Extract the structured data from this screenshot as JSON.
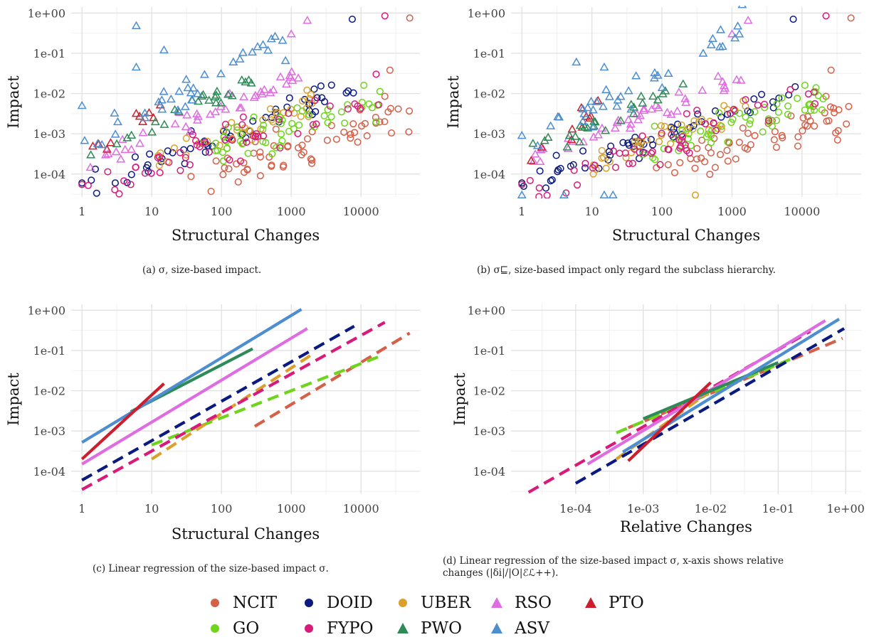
{
  "colors": {
    "NCIT": "#d4604a",
    "DOID": "#0b1a80",
    "UBER": "#d9a02b",
    "RSO": "#dd6de0",
    "PTO": "#cc1f2e",
    "GO": "#6fd41c",
    "FYPO": "#d81b7a",
    "PWO": "#2e8b57",
    "ASV": "#4d8ed0"
  },
  "legend": [
    {
      "name": "NCIT",
      "shape": "circle"
    },
    {
      "name": "DOID",
      "shape": "circle"
    },
    {
      "name": "UBER",
      "shape": "circle"
    },
    {
      "name": "RSO",
      "shape": "triangle"
    },
    {
      "name": "PTO",
      "shape": "triangle"
    },
    {
      "name": "GO",
      "shape": "circle"
    },
    {
      "name": "FYPO",
      "shape": "circle"
    },
    {
      "name": "PWO",
      "shape": "triangle"
    },
    {
      "name": "ASV",
      "shape": "triangle"
    }
  ],
  "captions": {
    "a": "(a) σ, size-based impact.",
    "b": "(b) σ⊑, size-based impact only regard the subclass hierarchy.",
    "c": "(c) Linear regression of the size-based impact σ.",
    "d1": "(d) Linear regression of the size-based impact σ, x-axis shows relative",
    "d2": "changes (|δi|/|O|ℰℒ++)."
  },
  "chart_data": [
    {
      "id": "a",
      "type": "scatter",
      "xlabel": "Structural Changes",
      "ylabel": "Impact",
      "xscale": "log",
      "yscale": "log",
      "xlim": [
        0.7,
        70000
      ],
      "ylim": [
        2.7e-05,
        1.4
      ],
      "xticks": [
        1,
        10,
        100,
        1000,
        10000
      ],
      "xticklabels": [
        "1",
        "10",
        "100",
        "1000",
        "10000"
      ],
      "yticks": [
        0.0001,
        0.001,
        0.01,
        0.1,
        1
      ],
      "yticklabels": [
        "1e-04",
        "1e-03",
        "1e-02",
        "1e-01",
        "1e+00"
      ],
      "grid": true,
      "points_per_series": [
        60,
        55,
        40,
        40,
        10,
        50,
        50,
        25,
        35
      ],
      "series": [
        {
          "name": "NCIT",
          "marker": "circle",
          "slope": 0.52,
          "intercept": -4.95,
          "x_range": [
            30,
            50000
          ],
          "spread": 0.32,
          "extra": [
            [
              50000,
              0.75
            ],
            [
              26000,
              0.038
            ],
            [
              22000,
              0.0085
            ]
          ]
        },
        {
          "name": "DOID",
          "marker": "circle",
          "slope": 0.6,
          "intercept": -4.25,
          "x_range": [
            1,
            8000
          ],
          "spread": 0.22,
          "extra": [
            [
              7500,
              0.7
            ],
            [
              1,
              6e-05
            ],
            [
              3,
              6e-05
            ]
          ]
        },
        {
          "name": "UBER",
          "marker": "circle",
          "slope": 0.68,
          "intercept": -4.5,
          "x_range": [
            10,
            2000
          ],
          "spread": 0.2,
          "extra": [
            [
              300,
              0.0009
            ]
          ]
        },
        {
          "name": "RSO",
          "marker": "triangle",
          "slope": 0.7,
          "intercept": -3.75,
          "x_range": [
            1,
            1600
          ],
          "spread": 0.18,
          "extra": [
            [
              1700,
              0.65
            ],
            [
              1000,
              0.3
            ]
          ]
        },
        {
          "name": "PTO",
          "marker": "triangle",
          "slope": 1.12,
          "intercept": -3.65,
          "x_range": [
            1,
            15
          ],
          "spread": 0.2,
          "extra": []
        },
        {
          "name": "GO",
          "marker": "circle",
          "slope": 0.55,
          "intercept": -4.45,
          "x_range": [
            50,
            20000
          ],
          "spread": 0.3,
          "extra": [
            [
              11000,
              0.016
            ],
            [
              13000,
              0.0055
            ]
          ]
        },
        {
          "name": "FYPO",
          "marker": "circle",
          "slope": 0.62,
          "intercept": -4.55,
          "x_range": [
            1,
            22000
          ],
          "spread": 0.32,
          "extra": [
            [
              22000,
              0.85
            ],
            [
              1,
              5.5e-05
            ],
            [
              5,
              5.5e-05
            ]
          ]
        },
        {
          "name": "PWO",
          "marker": "triangle",
          "slope": 0.78,
          "intercept": -3.58,
          "x_range": [
            1,
            280
          ],
          "spread": 0.15,
          "extra": []
        },
        {
          "name": "ASV",
          "marker": "triangle",
          "slope": 0.9,
          "intercept": -3.3,
          "x_range": [
            1,
            1400
          ],
          "spread": 0.25,
          "extra": [
            [
              1400,
              2.0
            ],
            [
              6,
              0.48
            ],
            [
              6,
              0.045
            ],
            [
              15,
              0.12
            ],
            [
              1,
              0.005
            ]
          ]
        }
      ]
    },
    {
      "id": "b",
      "type": "scatter",
      "xlabel": "Structural Changes",
      "ylabel": "Impact",
      "xscale": "log",
      "yscale": "log",
      "xlim": [
        0.7,
        70000
      ],
      "ylim": [
        2.7e-05,
        1.4
      ],
      "xticks": [
        1,
        10,
        100,
        1000,
        10000
      ],
      "xticklabels": [
        "1",
        "10",
        "100",
        "1000",
        "10000"
      ],
      "yticks": [
        0.0001,
        0.001,
        0.01,
        0.1,
        1
      ],
      "yticklabels": [
        "1e-04",
        "1e-03",
        "1e-02",
        "1e-01",
        "1e+00"
      ],
      "grid": true,
      "points_per_series": [
        60,
        55,
        40,
        40,
        10,
        50,
        50,
        25,
        35
      ],
      "series": [
        {
          "name": "NCIT",
          "marker": "circle",
          "slope": 0.52,
          "intercept": -4.95,
          "x_range": [
            30,
            50000
          ],
          "spread": 0.32,
          "extra": [
            [
              50000,
              0.75
            ],
            [
              26000,
              0.038
            ],
            [
              22000,
              0.0085
            ]
          ]
        },
        {
          "name": "DOID",
          "marker": "circle",
          "slope": 0.6,
          "intercept": -4.25,
          "x_range": [
            1,
            8000
          ],
          "spread": 0.22,
          "extra": [
            [
              7500,
              0.7
            ],
            [
              1,
              6e-05
            ]
          ]
        },
        {
          "name": "UBER",
          "marker": "circle",
          "slope": 0.68,
          "intercept": -4.5,
          "x_range": [
            10,
            2000
          ],
          "spread": 0.2,
          "extra": [
            [
              300,
              3e-05
            ]
          ]
        },
        {
          "name": "RSO",
          "marker": "triangle",
          "slope": 0.7,
          "intercept": -3.75,
          "x_range": [
            1,
            1600
          ],
          "spread": 0.18,
          "extra": [
            [
              1700,
              0.65
            ],
            [
              1000,
              0.3
            ]
          ]
        },
        {
          "name": "PTO",
          "marker": "triangle",
          "slope": 1.12,
          "intercept": -3.65,
          "x_range": [
            1,
            15
          ],
          "spread": 0.2,
          "extra": []
        },
        {
          "name": "GO",
          "marker": "circle",
          "slope": 0.55,
          "intercept": -4.45,
          "x_range": [
            50,
            20000
          ],
          "spread": 0.3,
          "extra": [
            [
              11000,
              0.016
            ],
            [
              13000,
              0.0055
            ]
          ]
        },
        {
          "name": "FYPO",
          "marker": "circle",
          "slope": 0.62,
          "intercept": -4.55,
          "x_range": [
            1,
            22000
          ],
          "spread": 0.32,
          "extra": [
            [
              22000,
              0.85
            ],
            [
              1,
              5.5e-05
            ]
          ]
        },
        {
          "name": "PWO",
          "marker": "triangle",
          "slope": 0.78,
          "intercept": -3.58,
          "x_range": [
            1,
            280
          ],
          "spread": 0.15,
          "extra": []
        },
        {
          "name": "ASV",
          "marker": "triangle",
          "slope": 0.9,
          "intercept": -3.3,
          "x_range": [
            1,
            1400
          ],
          "spread": 0.25,
          "extra": [
            [
              1400,
              1.6
            ],
            [
              6,
              0.06
            ],
            [
              15,
              0.045
            ],
            [
              1,
              0.0009
            ],
            [
              1,
              3e-05
            ],
            [
              4,
              3e-05
            ],
            [
              15,
              3e-05
            ],
            [
              20,
              3e-05
            ]
          ]
        }
      ]
    },
    {
      "id": "c",
      "type": "line",
      "xlabel": "Structural Changes",
      "ylabel": "Impact",
      "xscale": "log",
      "yscale": "log",
      "xlim": [
        0.7,
        70000
      ],
      "ylim": [
        2.7e-05,
        1.4
      ],
      "xticks": [
        1,
        10,
        100,
        1000,
        10000
      ],
      "xticklabels": [
        "1",
        "10",
        "100",
        "1000",
        "10000"
      ],
      "yticks": [
        0.0001,
        0.001,
        0.01,
        0.1,
        1
      ],
      "yticklabels": [
        "1e-04",
        "1e-03",
        "1e-02",
        "1e-01",
        "1e+00"
      ],
      "grid": true,
      "series": [
        {
          "name": "NCIT",
          "dashed": true,
          "x": [
            300,
            50000
          ],
          "y": [
            0.0013,
            0.27
          ]
        },
        {
          "name": "GO",
          "dashed": true,
          "x": [
            10,
            20000
          ],
          "y": [
            0.00045,
            0.075
          ]
        },
        {
          "name": "DOID",
          "dashed": true,
          "x": [
            1,
            8000
          ],
          "y": [
            6e-05,
            0.4
          ]
        },
        {
          "name": "UBER",
          "dashed": true,
          "x": [
            10,
            2000
          ],
          "y": [
            0.0002,
            0.08
          ]
        },
        {
          "name": "FYPO",
          "dashed": true,
          "x": [
            1,
            22000
          ],
          "y": [
            3.5e-05,
            0.5
          ]
        },
        {
          "name": "RSO",
          "dashed": false,
          "x": [
            1,
            1700
          ],
          "y": [
            0.00015,
            0.35
          ]
        },
        {
          "name": "PWO",
          "dashed": false,
          "x": [
            5,
            280
          ],
          "y": [
            0.003,
            0.11
          ]
        },
        {
          "name": "ASV",
          "dashed": false,
          "x": [
            1,
            1400
          ],
          "y": [
            0.00052,
            1.05
          ]
        },
        {
          "name": "PTO",
          "dashed": false,
          "x": [
            1,
            15
          ],
          "y": [
            0.0002,
            0.015
          ]
        }
      ]
    },
    {
      "id": "d",
      "type": "line",
      "xlabel": "Relative Changes",
      "ylabel": "Impact",
      "xscale": "log",
      "yscale": "log",
      "xlim": [
        1.1e-05,
        1.7
      ],
      "ylim": [
        2.7e-05,
        1.4
      ],
      "xticks": [
        0.0001,
        0.001,
        0.01,
        0.1,
        1
      ],
      "xticklabels": [
        "1e-04",
        "1e-03",
        "1e-02",
        "1e-01",
        "1e+00"
      ],
      "yticks": [
        0.0001,
        0.001,
        0.01,
        0.1,
        1
      ],
      "yticklabels": [
        "1e-04",
        "1e-03",
        "1e-02",
        "1e-01",
        "1e+00"
      ],
      "grid": true,
      "series": [
        {
          "name": "NCIT",
          "dashed": true,
          "x": [
            0.0006,
            0.9
          ],
          "y": [
            0.0012,
            0.2
          ]
        },
        {
          "name": "GO",
          "dashed": true,
          "x": [
            0.0004,
            0.15
          ],
          "y": [
            0.0009,
            0.06
          ]
        },
        {
          "name": "UBER",
          "dashed": true,
          "x": [
            0.0004,
            0.01
          ],
          "y": [
            0.0002,
            0.01
          ]
        },
        {
          "name": "DOID",
          "dashed": true,
          "x": [
            0.0001,
            0.95
          ],
          "y": [
            5e-05,
            0.35
          ]
        },
        {
          "name": "FYPO",
          "dashed": true,
          "x": [
            2e-05,
            0.3
          ],
          "y": [
            3e-05,
            0.3
          ]
        },
        {
          "name": "RSO",
          "dashed": false,
          "x": [
            0.00015,
            0.5
          ],
          "y": [
            0.00015,
            0.55
          ]
        },
        {
          "name": "PWO",
          "dashed": false,
          "x": [
            0.001,
            0.1
          ],
          "y": [
            0.002,
            0.05
          ]
        },
        {
          "name": "ASV",
          "dashed": false,
          "x": [
            0.0005,
            0.8
          ],
          "y": [
            0.0003,
            0.6
          ]
        },
        {
          "name": "PTO",
          "dashed": false,
          "x": [
            0.0006,
            0.01
          ],
          "y": [
            0.00018,
            0.016
          ]
        }
      ]
    }
  ]
}
